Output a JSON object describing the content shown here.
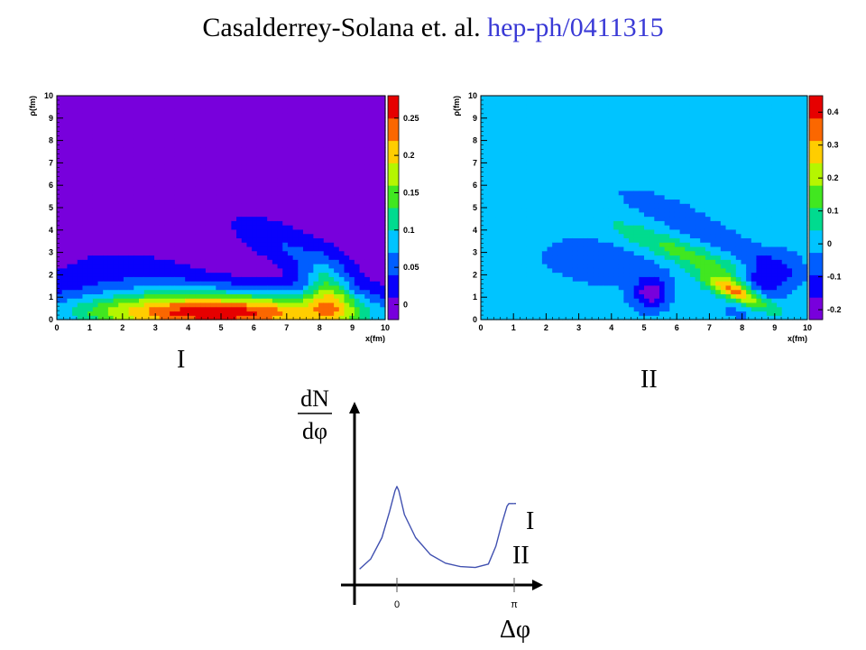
{
  "slide": {
    "title_authors": "Casalderrey-Solana et. al.",
    "title_ref": "hep-ph/0411315",
    "label_I": "I",
    "label_II": "II"
  },
  "colors": {
    "ref": "#3a3ad6",
    "curve": "#4050b0"
  },
  "chart_data": [
    {
      "type": "heatmap",
      "name": "I",
      "xlabel": "x(fm)",
      "ylabel": "ρ(fm)",
      "xlim": [
        0,
        10
      ],
      "ylim": [
        0,
        10
      ],
      "xticks": [
        "0",
        "1",
        "2",
        "3",
        "4",
        "5",
        "6",
        "7",
        "8",
        "9",
        "10"
      ],
      "yticks": [
        "0",
        "1",
        "2",
        "3",
        "4",
        "5",
        "6",
        "7",
        "8",
        "9",
        "10"
      ],
      "zlim": [
        -0.02,
        0.28
      ],
      "colorbar_ticks": [
        {
          "value": 0.25,
          "label": "0.25"
        },
        {
          "value": 0.2,
          "label": "0.2"
        },
        {
          "value": 0.15,
          "label": "0.15"
        },
        {
          "value": 0.1,
          "label": "0.1"
        },
        {
          "value": 0.05,
          "label": "0.05"
        },
        {
          "value": 0,
          "label": "0"
        }
      ],
      "background_value": 0.0,
      "blobs": [
        {
          "cx": 5.0,
          "cy": 0.3,
          "rx": 4.5,
          "ry": 0.9,
          "angle": 0,
          "amp": 0.26
        },
        {
          "cx": 8.3,
          "cy": 1.2,
          "rx": 0.7,
          "ry": 1.4,
          "angle": 10,
          "amp": 0.12
        },
        {
          "cx": 4.6,
          "cy": 2.8,
          "rx": 2.2,
          "ry": 0.7,
          "angle": -18,
          "amp": -0.02
        },
        {
          "cx": 7.0,
          "cy": 3.2,
          "rx": 1.7,
          "ry": 0.7,
          "angle": -40,
          "amp": 0.04
        },
        {
          "cx": 2.8,
          "cy": 1.5,
          "rx": 2.6,
          "ry": 1.5,
          "angle": 0,
          "amp": 0.035
        }
      ]
    },
    {
      "type": "heatmap",
      "name": "II",
      "xlabel": "x(fm)",
      "ylabel": "ρ(fm)",
      "xlim": [
        0,
        10
      ],
      "ylim": [
        0,
        10
      ],
      "xticks": [
        "0",
        "1",
        "2",
        "3",
        "4",
        "5",
        "6",
        "7",
        "8",
        "9",
        "10"
      ],
      "yticks": [
        "0",
        "1",
        "2",
        "3",
        "4",
        "5",
        "6",
        "7",
        "8",
        "9",
        "10"
      ],
      "zlim": [
        -0.23,
        0.45
      ],
      "colorbar_ticks": [
        {
          "value": 0.4,
          "label": "0.4"
        },
        {
          "value": 0.3,
          "label": "0.3"
        },
        {
          "value": 0.2,
          "label": "0.2"
        },
        {
          "value": 0.1,
          "label": "0.1"
        },
        {
          "value": 0,
          "label": "0"
        },
        {
          "value": -0.1,
          "label": "-0.1"
        },
        {
          "value": -0.2,
          "label": "-0.2"
        }
      ],
      "background_value": 0.0,
      "blobs": [
        {
          "cx": 7.9,
          "cy": 1.2,
          "rx": 1.1,
          "ry": 0.4,
          "angle": -35,
          "amp": 0.42
        },
        {
          "cx": 6.3,
          "cy": 2.9,
          "rx": 2.6,
          "ry": 0.5,
          "angle": -30,
          "amp": 0.15
        },
        {
          "cx": 5.2,
          "cy": 1.2,
          "rx": 0.5,
          "ry": 0.7,
          "angle": 0,
          "amp": -0.2
        },
        {
          "cx": 8.6,
          "cy": 1.6,
          "rx": 0.8,
          "ry": 1.2,
          "angle": -30,
          "amp": -0.2
        },
        {
          "cx": 7.2,
          "cy": 3.7,
          "rx": 2.2,
          "ry": 0.45,
          "angle": -35,
          "amp": -0.08
        },
        {
          "cx": 3.8,
          "cy": 2.6,
          "rx": 2.4,
          "ry": 1.3,
          "angle": -10,
          "amp": -0.05
        },
        {
          "cx": 5.6,
          "cy": 5.0,
          "rx": 1.6,
          "ry": 0.5,
          "angle": -30,
          "amp": -0.05
        }
      ]
    },
    {
      "type": "line",
      "name": "dN/dΔφ sketch",
      "ylabel_num": "dN",
      "ylabel_den": "dφ",
      "xlabel": "Δφ",
      "xtick_labels": [
        "0",
        "π"
      ],
      "xlim": [
        -1.0,
        3.6
      ],
      "ylim": [
        0,
        1.25
      ],
      "x": [
        -1.0,
        -0.7,
        -0.4,
        -0.2,
        -0.05,
        0.0,
        0.05,
        0.2,
        0.5,
        0.9,
        1.3,
        1.7,
        2.1,
        2.45,
        2.65,
        2.8,
        2.95,
        3.0,
        3.05,
        3.14
      ],
      "y": [
        0.08,
        0.2,
        0.45,
        0.75,
        1.0,
        1.05,
        1.0,
        0.72,
        0.45,
        0.25,
        0.15,
        0.11,
        0.1,
        0.14,
        0.35,
        0.6,
        0.82,
        0.85,
        0.85,
        0.85
      ],
      "series_labels": [
        "I",
        "II"
      ]
    }
  ]
}
